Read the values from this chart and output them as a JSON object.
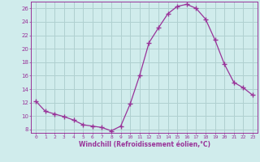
{
  "x": [
    0,
    1,
    2,
    3,
    4,
    5,
    6,
    7,
    8,
    9,
    10,
    11,
    12,
    13,
    14,
    15,
    16,
    17,
    18,
    19,
    20,
    21,
    22,
    23
  ],
  "y": [
    12.2,
    10.7,
    10.3,
    9.9,
    9.4,
    8.7,
    8.5,
    8.3,
    7.8,
    8.5,
    11.8,
    16.0,
    20.9,
    23.1,
    25.2,
    26.3,
    26.6,
    26.0,
    24.4,
    21.3,
    17.7,
    15.0,
    14.2,
    13.1
  ],
  "line_color": "#993399",
  "marker": "+",
  "marker_size": 4,
  "bg_color": "#d0ecec",
  "grid_color": "#b0d0d0",
  "xlabel": "Windchill (Refroidissement éolien,°C)",
  "xlabel_color": "#993399",
  "tick_color": "#993399",
  "ylim": [
    7.5,
    27
  ],
  "yticks": [
    8,
    10,
    12,
    14,
    16,
    18,
    20,
    22,
    24,
    26
  ],
  "xticks": [
    0,
    1,
    2,
    3,
    4,
    5,
    6,
    7,
    8,
    9,
    10,
    11,
    12,
    13,
    14,
    15,
    16,
    17,
    18,
    19,
    20,
    21,
    22,
    23
  ]
}
